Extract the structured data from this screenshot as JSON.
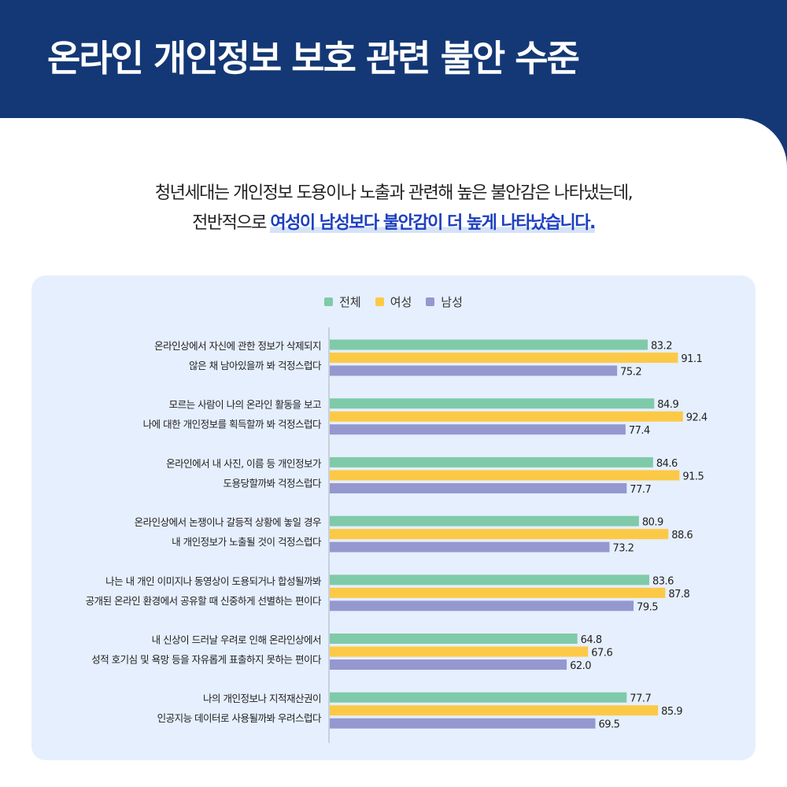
{
  "header": {
    "title": "온라인 개인정보 보호 관련 불안 수준"
  },
  "subtitle": {
    "line1": "청년세대는 개인정보 도용이나 노출과 관련해 높은 불안감은 나타냈는데,",
    "line2_prefix": "전반적으로 ",
    "line2_highlight": "여성이 남성보다 불안감이 더 높게 나타났습니다."
  },
  "chart_data": {
    "type": "bar",
    "orientation": "horizontal",
    "legend_position": "top",
    "grid": false,
    "xlim": [
      0,
      100
    ],
    "categories": [
      [
        "온라인상에서 자신에 관한 정보가 삭제되지",
        "않은 채 남아있을까 봐 걱정스럽다"
      ],
      [
        "모르는 사람이 나의 온라인 활동을 보고",
        "나에 대한 개인정보를 획득할까 봐 걱정스럽다"
      ],
      [
        "온라인에서 내 사진, 이름 등 개인정보가",
        "도용당할까봐 걱정스럽다"
      ],
      [
        "온라인상에서 논쟁이나 갈등적 상황에 놓일 경우",
        "내 개인정보가 노출될 것이 걱정스럽다"
      ],
      [
        "나는 내 개인 이미지나 동영상이 도용되거나 합성될까봐",
        "공개된 온라인 환경에서 공유할 때 신중하게 선별하는 편이다"
      ],
      [
        "내 신상이 드러날 우려로 인해 온라인상에서",
        "성적 호기심 및 욕망 등을 자유롭게 표출하지 못하는 편이다"
      ],
      [
        "나의 개인정보나 지적재산권이",
        "인공지능 데이터로 사용될까봐 우려스럽다"
      ]
    ],
    "series": [
      {
        "name": "전체",
        "color": "#7fcaa9",
        "values": [
          83.2,
          84.9,
          84.6,
          80.9,
          83.6,
          64.8,
          77.7
        ]
      },
      {
        "name": "여성",
        "color": "#fcc947",
        "values": [
          91.1,
          92.4,
          91.5,
          88.6,
          87.8,
          67.6,
          85.9
        ]
      },
      {
        "name": "남성",
        "color": "#9597cf",
        "values": [
          75.2,
          77.4,
          77.7,
          73.2,
          79.5,
          62.0,
          69.5
        ]
      }
    ]
  }
}
